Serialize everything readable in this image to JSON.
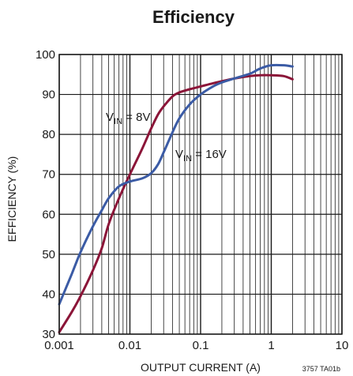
{
  "chart_data": {
    "type": "line",
    "title": "Efficiency",
    "xlabel": "OUTPUT CURRENT (A)",
    "ylabel": "EFFICIENCY (%)",
    "x_scale": "log",
    "xlim": [
      0.001,
      10
    ],
    "ylim": [
      30,
      100
    ],
    "x_ticks": [
      0.001,
      0.01,
      0.1,
      1,
      10
    ],
    "x_tick_labels": [
      "0.001",
      "0.01",
      "0.1",
      "1",
      "10"
    ],
    "y_ticks": [
      30,
      40,
      50,
      60,
      70,
      80,
      90,
      100
    ],
    "y_tick_labels": [
      "30",
      "40",
      "50",
      "60",
      "70",
      "80",
      "90",
      "100"
    ],
    "grid": true,
    "series": [
      {
        "name_main": "V",
        "name_sub": "IN",
        "name_rest": " = 8V",
        "color": "#8b1538",
        "x": [
          0.001,
          0.0015,
          0.002,
          0.003,
          0.004,
          0.005,
          0.007,
          0.01,
          0.015,
          0.02,
          0.025,
          0.03,
          0.04,
          0.05,
          0.07,
          0.1,
          0.15,
          0.2,
          0.3,
          0.5,
          0.7,
          1,
          1.5,
          2
        ],
        "y": [
          30.5,
          35.5,
          39.5,
          46,
          51.5,
          57.5,
          64,
          70,
          76.5,
          81.5,
          85,
          87,
          89.5,
          90.5,
          91.3,
          92,
          92.8,
          93.3,
          94,
          94.6,
          94.8,
          94.8,
          94.6,
          93.8
        ]
      },
      {
        "name_main": "V",
        "name_sub": "IN",
        "name_rest": " = 16V",
        "color": "#3b5ba5",
        "x": [
          0.001,
          0.0015,
          0.002,
          0.003,
          0.004,
          0.005,
          0.007,
          0.01,
          0.015,
          0.02,
          0.025,
          0.03,
          0.04,
          0.05,
          0.07,
          0.1,
          0.15,
          0.2,
          0.3,
          0.5,
          0.7,
          1,
          1.5,
          2
        ],
        "y": [
          37.5,
          45,
          50.5,
          57,
          61,
          64,
          67,
          68.2,
          69,
          70.3,
          72.5,
          75.5,
          80.5,
          84,
          87.5,
          90,
          92,
          93,
          94,
          95.2,
          96.5,
          97.3,
          97.3,
          97
        ]
      }
    ],
    "footnote": "3757 TA01b"
  }
}
